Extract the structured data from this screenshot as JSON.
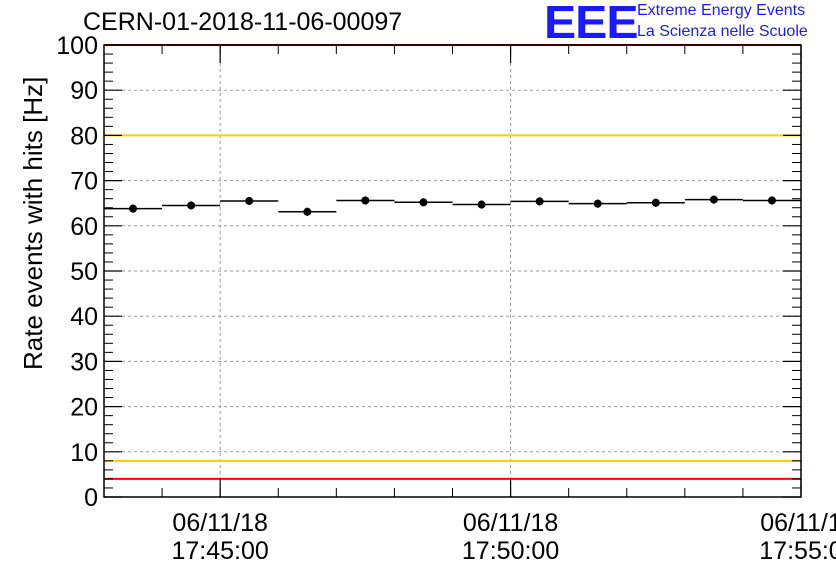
{
  "header": {
    "run_title": "CERN-01-2018-11-06-00097",
    "logo_letters": "EEE",
    "logo_line1": "Extreme Energy Events",
    "logo_line2": "La Scienza nelle Scuole"
  },
  "chart_data": {
    "type": "scatter",
    "title": "CERN-01-2018-11-06-00097",
    "xlabel": "",
    "ylabel": "Rate events with hits [Hz]",
    "ylim": [
      0,
      100
    ],
    "xlim": [
      "2018-11-06 17:43:00",
      "2018-11-06 17:55:00"
    ],
    "y_ticks": [
      0,
      10,
      20,
      30,
      40,
      50,
      60,
      70,
      80,
      90,
      100
    ],
    "x_ticks": [
      {
        "date": "06/11/18",
        "time": "17:45:00"
      },
      {
        "date": "06/11/18",
        "time": "17:50:00"
      },
      {
        "date": "06/11/1",
        "time": "17:55:0"
      }
    ],
    "grid": true,
    "reference_lines": [
      {
        "y": 100,
        "color": "#ff0000"
      },
      {
        "y": 80,
        "color": "#ffcc00"
      },
      {
        "y": 8,
        "color": "#ffcc00"
      },
      {
        "y": 4,
        "color": "#ff0000"
      }
    ],
    "series": [
      {
        "x_bins": [
          [
            "17:43:00",
            "17:44:00"
          ],
          [
            "17:44:00",
            "17:45:00"
          ],
          [
            "17:45:00",
            "17:46:00"
          ],
          [
            "17:46:00",
            "17:47:00"
          ],
          [
            "17:47:00",
            "17:48:00"
          ],
          [
            "17:48:00",
            "17:49:00"
          ],
          [
            "17:49:00",
            "17:50:00"
          ],
          [
            "17:50:00",
            "17:51:00"
          ],
          [
            "17:51:00",
            "17:52:00"
          ],
          [
            "17:52:00",
            "17:53:00"
          ],
          [
            "17:53:00",
            "17:54:00"
          ],
          [
            "17:54:00",
            "17:55:00"
          ]
        ],
        "values": [
          63.8,
          64.5,
          65.5,
          63.1,
          65.6,
          65.2,
          64.7,
          65.4,
          64.9,
          65.1,
          65.8,
          65.6
        ],
        "errors": [
          0.9,
          0.9,
          0.9,
          0.9,
          0.9,
          0.9,
          0.9,
          0.9,
          0.9,
          0.9,
          0.9,
          0.9
        ],
        "color": "#000000"
      }
    ]
  }
}
